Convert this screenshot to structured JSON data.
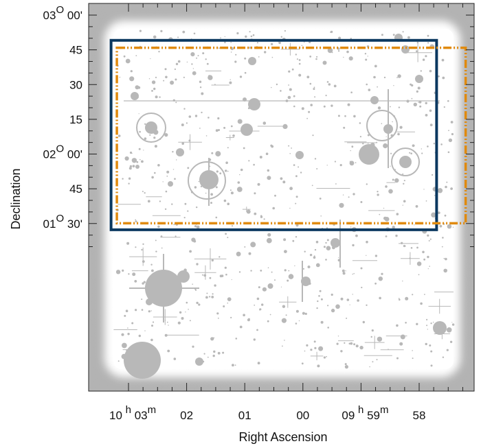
{
  "chart_data": {
    "type": "sky-map",
    "xlabel": "Right Ascension",
    "ylabel": "Declination",
    "x_axis": {
      "reversed": true,
      "ticks": [
        {
          "major": "10",
          "unit_h": "h",
          "minor": "03",
          "unit_m": "m",
          "ra_min": 603
        },
        {
          "label": "02",
          "ra_min": 602
        },
        {
          "label": "01",
          "ra_min": 601
        },
        {
          "label": "00",
          "ra_min": 600
        },
        {
          "major": "09",
          "unit_h": "h",
          "minor": "59",
          "unit_m": "m",
          "ra_min": 599
        },
        {
          "label": "58",
          "ra_min": 598
        }
      ]
    },
    "y_axis": {
      "ticks": [
        {
          "deg": "03",
          "unit_deg": "O",
          "min": "00'",
          "dec_arcmin": 180
        },
        {
          "label": "45",
          "dec_arcmin": 165
        },
        {
          "label": "30",
          "dec_arcmin": 150
        },
        {
          "label": "15",
          "dec_arcmin": 135
        },
        {
          "deg": "02",
          "unit_deg": "O",
          "min": "00'",
          "dec_arcmin": 120
        },
        {
          "label": "45",
          "dec_arcmin": 105
        },
        {
          "deg": "01",
          "unit_deg": "O",
          "min": "30'",
          "dec_arcmin": 90
        }
      ]
    },
    "regions": [
      {
        "name": "solid-box",
        "style": "solid",
        "color": "#0b3860",
        "ra_min": [
          603.3,
          597.7
        ],
        "dec_arcmin": [
          87.3,
          169.1
        ]
      },
      {
        "name": "dashed-box",
        "style": "dash-dot",
        "color": "#e08a0e",
        "ra_min": [
          603.2,
          597.2
        ],
        "dec_arcmin": [
          90.1,
          165.9
        ]
      }
    ],
    "colors": {
      "field_background": "#b3b3b3",
      "field_inner": "#ffffff",
      "sources": "#b8b8b8"
    },
    "grid": false
  }
}
